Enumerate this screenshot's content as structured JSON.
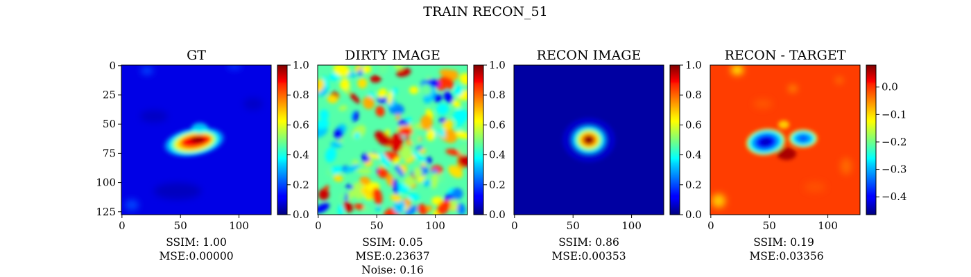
{
  "figure": {
    "title": "TRAIN RECON_51"
  },
  "chart_data": [
    {
      "type": "heatmap",
      "title": "GT",
      "colormap": "jet",
      "xlim": [
        0,
        127
      ],
      "ylim": [
        0,
        127
      ],
      "xticks": [
        0,
        50,
        100
      ],
      "yticks": [
        0,
        25,
        50,
        75,
        100,
        125
      ],
      "colorbar": {
        "range": [
          0.0,
          1.0
        ],
        "ticks": [
          "0.0",
          "0.2",
          "0.4",
          "0.6",
          "0.8",
          "1.0"
        ]
      },
      "metrics": [
        "SSIM: 1.00",
        "MSE:0.00000"
      ]
    },
    {
      "type": "heatmap",
      "title": "DIRTY IMAGE",
      "colormap": "jet",
      "xlim": [
        0,
        127
      ],
      "xticks": [
        0,
        50,
        100
      ],
      "colorbar": {
        "range": [
          0.0,
          1.0
        ],
        "ticks": [
          "0.0",
          "0.2",
          "0.4",
          "0.6",
          "0.8",
          "1.0"
        ]
      },
      "metrics": [
        "SSIM: 0.05",
        "MSE:0.23637",
        "Noise: 0.16"
      ]
    },
    {
      "type": "heatmap",
      "title": "RECON IMAGE",
      "colormap": "jet",
      "xlim": [
        0,
        127
      ],
      "xticks": [
        0,
        50,
        100
      ],
      "colorbar": {
        "range": [
          0.0,
          1.0
        ],
        "ticks": [
          "0.0",
          "0.2",
          "0.4",
          "0.6",
          "0.8",
          "1.0"
        ]
      },
      "metrics": [
        "SSIM: 0.86",
        "MSE:0.00353"
      ]
    },
    {
      "type": "heatmap",
      "title": "RECON - TARGET",
      "colormap": "jet",
      "xlim": [
        0,
        127
      ],
      "xticks": [
        0,
        50,
        100
      ],
      "colorbar": {
        "range": [
          -0.465,
          0.08
        ],
        "ticks": [
          "0.0",
          "−0.1",
          "−0.2",
          "−0.3",
          "−0.4"
        ],
        "tick_values": [
          0.0,
          -0.1,
          -0.2,
          -0.3,
          -0.4
        ]
      },
      "metrics": [
        "SSIM: 0.19",
        "MSE:0.03356"
      ]
    }
  ]
}
